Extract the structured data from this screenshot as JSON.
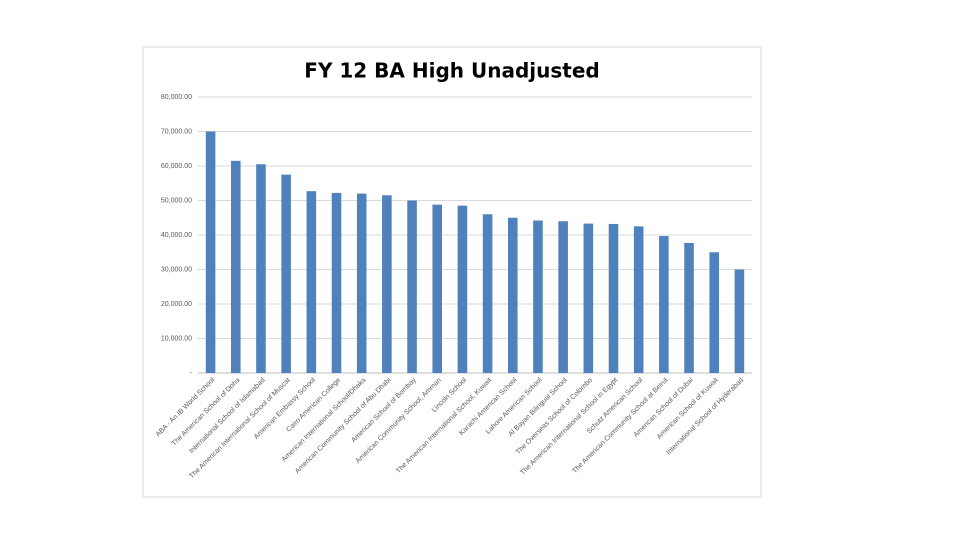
{
  "chart_data": {
    "type": "bar",
    "title": "FY 12 BA High Unadjusted",
    "categories": [
      "ABA - An IB World School",
      "The American School of Doha",
      "International School of Islamabad",
      "The American International School of Muscat",
      "American Embassy School",
      "Cairo American College",
      "American International School/Dhaka",
      "American Community School of Abu Dhabi",
      "American School of Bombay",
      "American Community School, Amman",
      "Lincoln School",
      "The American International School, Kuwait",
      "Karachi American School",
      "Lahore American School",
      "Al Bayan Bilingual School",
      "The Overseas School of Colombo",
      "The American International School in Egypt",
      "Schutz American School",
      "The American Community School at Beirut",
      "American School of Dubai",
      "American School of Kuwait",
      "International School of Hyderabad"
    ],
    "values": [
      70000,
      61500,
      60500,
      57500,
      52700,
      52200,
      52000,
      51500,
      50000,
      48800,
      48500,
      46000,
      45000,
      44200,
      44000,
      43300,
      43200,
      42500,
      39700,
      37700,
      35000,
      30000
    ],
    "color": "#4f81bd",
    "ylim": [
      0,
      80000
    ],
    "yticks": [
      {
        "value": 0,
        "label": "-"
      },
      {
        "value": 10000,
        "label": "10,000.00"
      },
      {
        "value": 20000,
        "label": "20,000.00"
      },
      {
        "value": 30000,
        "label": "30,000.00"
      },
      {
        "value": 40000,
        "label": "40,000.00"
      },
      {
        "value": 50000,
        "label": "50,000.00"
      },
      {
        "value": 60000,
        "label": "60,000.00"
      },
      {
        "value": 70000,
        "label": "70,000.00"
      },
      {
        "value": 80000,
        "label": "80,000.00"
      }
    ],
    "grid": true
  }
}
